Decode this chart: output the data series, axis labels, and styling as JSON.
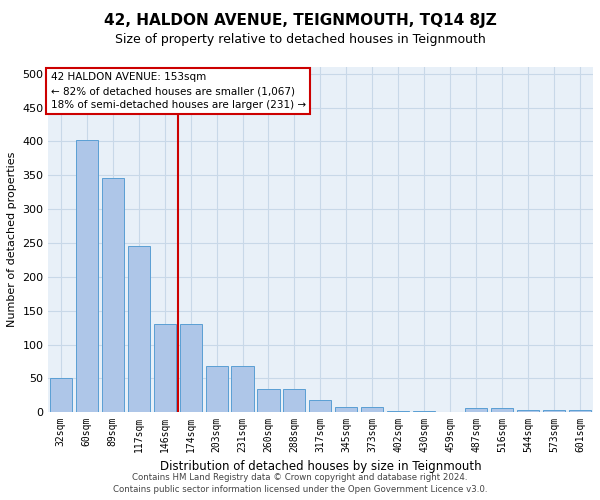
{
  "title": "42, HALDON AVENUE, TEIGNMOUTH, TQ14 8JZ",
  "subtitle": "Size of property relative to detached houses in Teignmouth",
  "xlabel": "Distribution of detached houses by size in Teignmouth",
  "ylabel": "Number of detached properties",
  "footer_line1": "Contains HM Land Registry data © Crown copyright and database right 2024.",
  "footer_line2": "Contains public sector information licensed under the Open Government Licence v3.0.",
  "categories": [
    "32sqm",
    "60sqm",
    "89sqm",
    "117sqm",
    "146sqm",
    "174sqm",
    "203sqm",
    "231sqm",
    "260sqm",
    "288sqm",
    "317sqm",
    "345sqm",
    "373sqm",
    "402sqm",
    "430sqm",
    "459sqm",
    "487sqm",
    "516sqm",
    "544sqm",
    "573sqm",
    "601sqm"
  ],
  "values": [
    50,
    402,
    346,
    246,
    130,
    130,
    68,
    68,
    35,
    35,
    18,
    8,
    8,
    2,
    2,
    0,
    6,
    6,
    3,
    3,
    3
  ],
  "bar_color": "#aec6e8",
  "bar_edge_color": "#5a9fd4",
  "grid_color": "#c8d8e8",
  "background_color": "#e8f0f8",
  "property_line_x": 4.5,
  "annotation_text1": "42 HALDON AVENUE: 153sqm",
  "annotation_text2": "← 82% of detached houses are smaller (1,067)",
  "annotation_text3": "18% of semi-detached houses are larger (231) →",
  "annotation_box_color": "#ffffff",
  "annotation_box_edge_color": "#cc0000",
  "property_line_color": "#cc0000",
  "ylim": [
    0,
    510
  ],
  "yticks": [
    0,
    50,
    100,
    150,
    200,
    250,
    300,
    350,
    400,
    450,
    500
  ]
}
